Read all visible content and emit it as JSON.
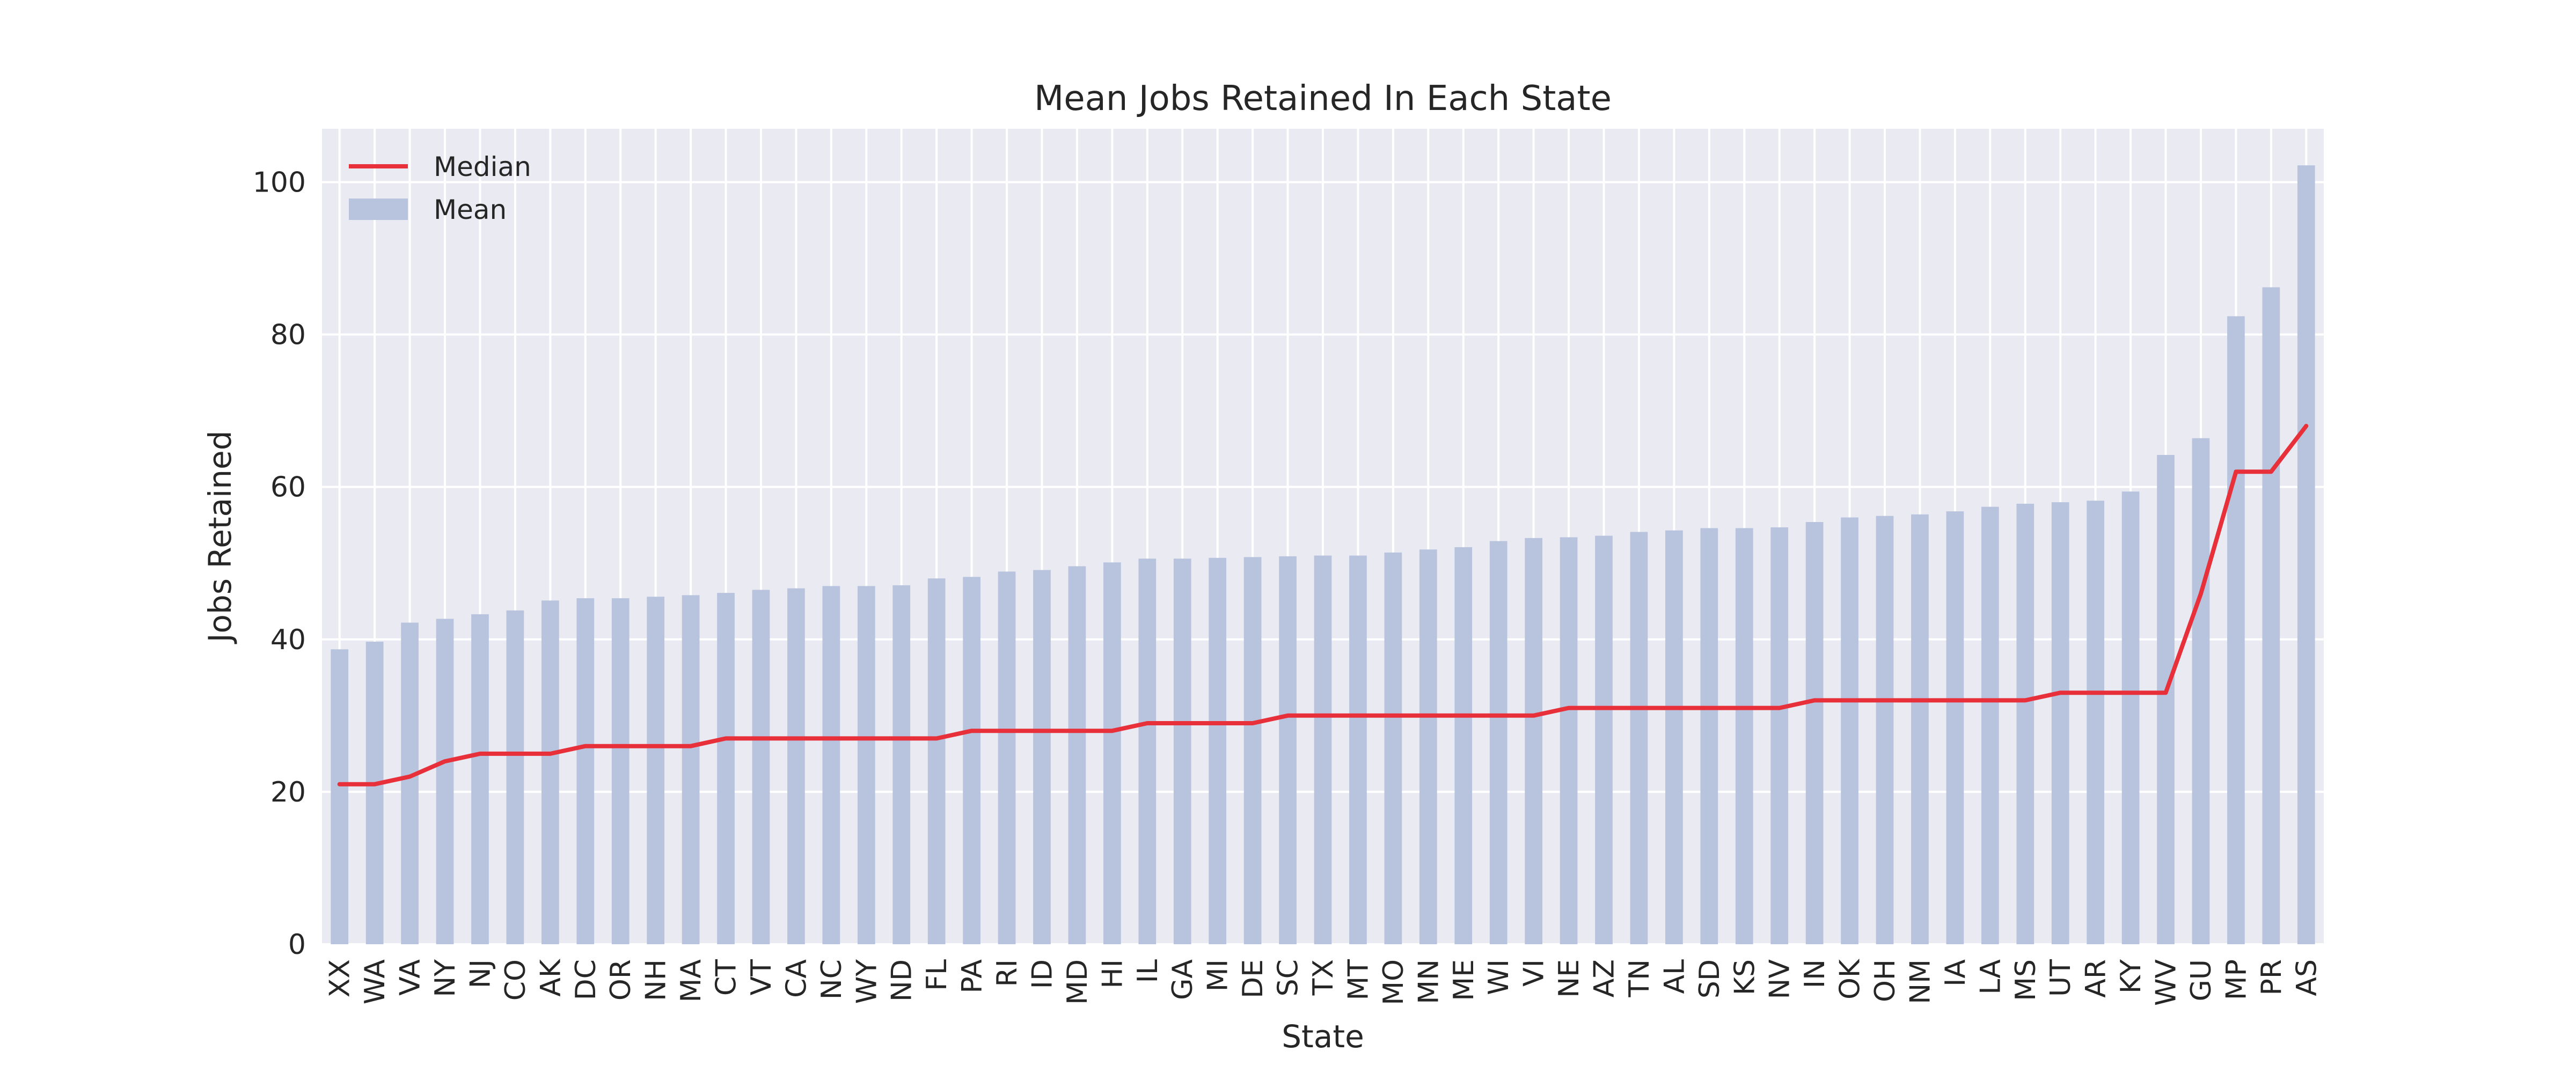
{
  "chart_data": {
    "type": "bar",
    "title": "Mean Jobs Retained In Each State",
    "xlabel": "State",
    "ylabel": "Jobs Retained",
    "ylim": [
      0,
      107
    ],
    "yticks": [
      0,
      20,
      40,
      60,
      80,
      100
    ],
    "grid": true,
    "legend_position": "top-left",
    "categories": [
      "XX",
      "WA",
      "VA",
      "NY",
      "NJ",
      "CO",
      "AK",
      "DC",
      "OR",
      "NH",
      "MA",
      "CT",
      "VT",
      "CA",
      "NC",
      "WY",
      "ND",
      "FL",
      "PA",
      "RI",
      "ID",
      "MD",
      "HI",
      "IL",
      "GA",
      "MI",
      "DE",
      "SC",
      "TX",
      "MT",
      "MO",
      "MN",
      "ME",
      "WI",
      "VI",
      "NE",
      "AZ",
      "TN",
      "AL",
      "SD",
      "KS",
      "NV",
      "IN",
      "OK",
      "OH",
      "NM",
      "IA",
      "LA",
      "MS",
      "UT",
      "AR",
      "KY",
      "WV",
      "GU",
      "MP",
      "PR",
      "AS"
    ],
    "series": [
      {
        "name": "Median",
        "kind": "line",
        "color": "#e8303a",
        "values": [
          21,
          21,
          22,
          24,
          25,
          25,
          25,
          26,
          26,
          26,
          26,
          27,
          27,
          27,
          27,
          27,
          27,
          27,
          28,
          28,
          28,
          28,
          28,
          29,
          29,
          29,
          29,
          30,
          30,
          30,
          30,
          30,
          30,
          30,
          30,
          31,
          31,
          31,
          31,
          31,
          31,
          31,
          32,
          32,
          32,
          32,
          32,
          32,
          32,
          33,
          33,
          33,
          33,
          46,
          62,
          62,
          68
        ]
      },
      {
        "name": "Mean",
        "kind": "bar",
        "color": "#b8c4de",
        "values": [
          38.7,
          39.7,
          42.2,
          42.7,
          43.3,
          43.8,
          45.1,
          45.4,
          45.4,
          45.6,
          45.8,
          46.1,
          46.5,
          46.7,
          47.0,
          47.0,
          47.1,
          48.0,
          48.2,
          48.9,
          49.1,
          49.6,
          50.1,
          50.6,
          50.6,
          50.7,
          50.8,
          50.9,
          51.0,
          51.0,
          51.4,
          51.8,
          52.1,
          52.9,
          53.3,
          53.4,
          53.6,
          54.1,
          54.3,
          54.6,
          54.6,
          54.7,
          55.4,
          56.0,
          56.2,
          56.4,
          56.8,
          57.4,
          57.8,
          58.0,
          58.2,
          59.4,
          64.2,
          66.4,
          82.4,
          86.2,
          102.2
        ]
      }
    ]
  }
}
